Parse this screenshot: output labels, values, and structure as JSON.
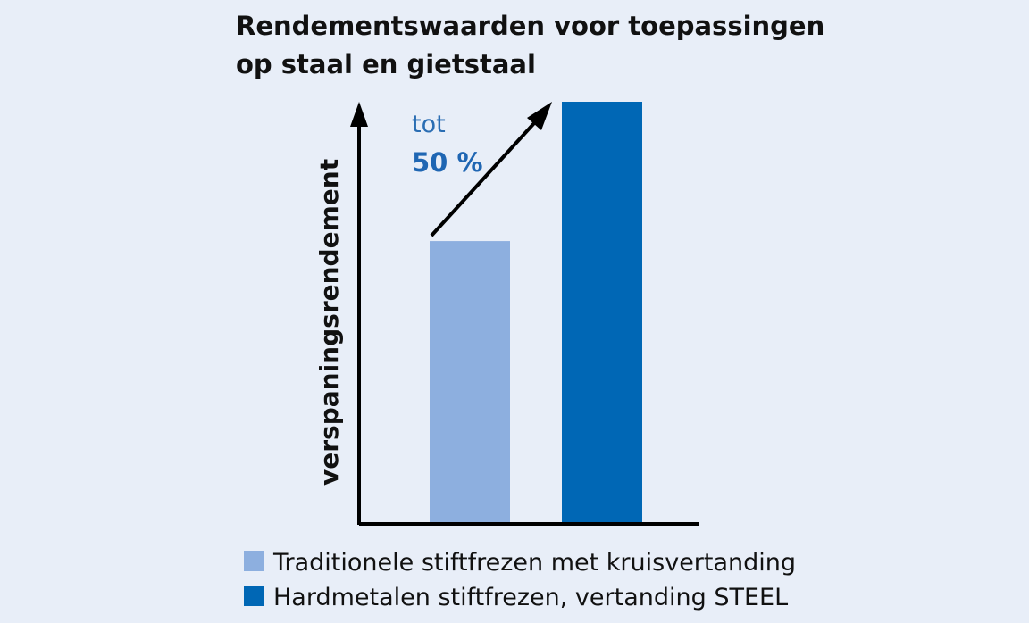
{
  "chart_data": {
    "type": "bar",
    "title_lines": [
      "Rendementswaarden voor toepassingen",
      "op staal en gietstaal"
    ],
    "ylabel": "verspaningsrendement",
    "xlabel": "",
    "grid": false,
    "legend_position": "bottom",
    "annotation": {
      "line1": "tot",
      "line2": "50 %"
    },
    "ylim": [
      0,
      100
    ],
    "series": [
      {
        "name": "Traditionele stiftfrezen met kruisvertanding",
        "value": 67,
        "color": "#8dafdf"
      },
      {
        "name": "Hardmetalen stiftfrezen, vertanding STEEL",
        "value": 100,
        "color": "#0067b5"
      }
    ]
  }
}
